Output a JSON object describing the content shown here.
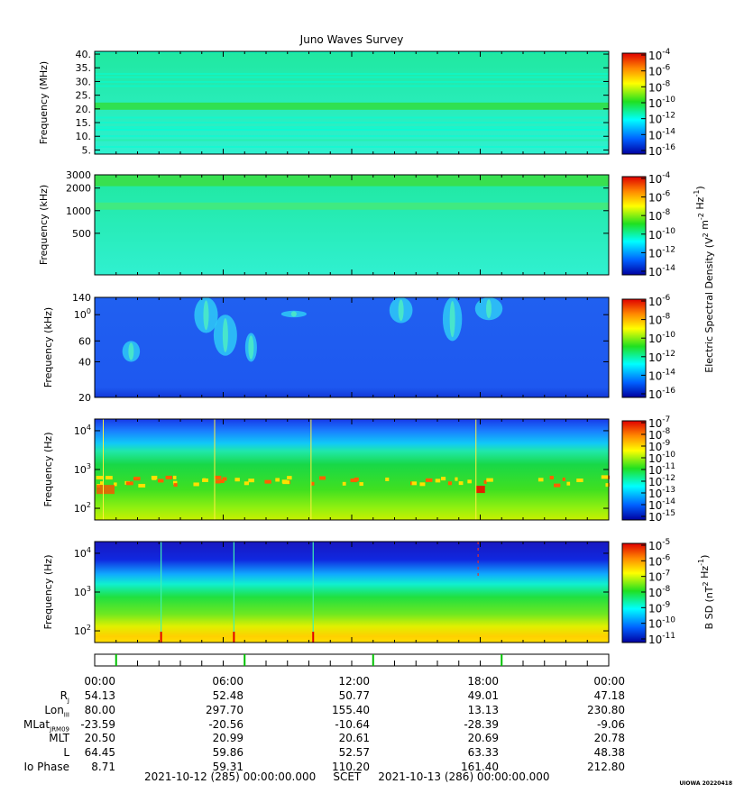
{
  "chart_data": {
    "title": "Juno Waves Survey",
    "panels": [
      {
        "type": "heatmap",
        "kind": "hfr_high",
        "ylabel": "Frequency (MHz)",
        "yscale": "linear",
        "ylim": [
          3.5,
          41
        ],
        "yticks": [
          "40.",
          "35.",
          "30.",
          "25.",
          "20.",
          "15.",
          "10.",
          "5."
        ],
        "yvals": [
          40,
          35,
          30,
          25,
          20,
          15,
          10,
          5
        ],
        "cbar_labels": [
          "10-4",
          "10-6",
          "10-8",
          "10-10",
          "10-12",
          "10-14",
          "10-16"
        ]
      },
      {
        "type": "heatmap",
        "kind": "hfr_low",
        "ylabel": "Frequency (kHz)",
        "yscale": "log",
        "ylim": [
          140,
          3000
        ],
        "yticks": [
          "3000",
          "2000",
          "1000",
          "500"
        ],
        "yvals": [
          3000,
          2000,
          1000,
          500
        ],
        "cbar_labels": [
          "10-4",
          "10-6",
          "10-8",
          "10-10",
          "10-12",
          "10-14"
        ]
      },
      {
        "type": "heatmap",
        "kind": "lfr",
        "ylabel": "Frequency (kHz)",
        "yscale": "log",
        "ylim": [
          20,
          140
        ],
        "yticks": [
          "140",
          "100",
          "60",
          "40",
          "20"
        ],
        "yvals": [
          140,
          100,
          60,
          40,
          20
        ],
        "cbar_labels": [
          "10-6",
          "10-8",
          "10-10",
          "10-12",
          "10-14",
          "10-16"
        ]
      },
      {
        "type": "heatmap",
        "kind": "electric_lowband",
        "ylabel": "Frequency (Hz)",
        "yscale": "log",
        "ylim": [
          50,
          20000
        ],
        "yticks": [
          "104",
          "103",
          "102"
        ],
        "yvals": [
          10000,
          1000,
          100
        ],
        "cbar_labels": [
          "10-7",
          "10-8",
          "10-9",
          "10-10",
          "10-11",
          "10-12",
          "10-13",
          "10-14",
          "10-15"
        ]
      },
      {
        "type": "heatmap",
        "kind": "magnetic",
        "ylabel": "Frequency (Hz)",
        "yscale": "log",
        "ylim": [
          50,
          20000
        ],
        "yticks": [
          "104",
          "103",
          "102"
        ],
        "yvals": [
          10000,
          1000,
          100
        ],
        "cbar_labels": [
          "10-5",
          "10-6",
          "10-7",
          "10-8",
          "10-9",
          "10-10",
          "10-11"
        ]
      }
    ],
    "shared_cbar_label": "Electric Spectral Density (V2 m-2 Hz-1)",
    "mag_cbar_label": "B SD (nT2 Hz-1)",
    "x_ticks": [
      "00:00",
      "06:00",
      "12:00",
      "18:00",
      "00:00"
    ],
    "xlim_hours": [
      0,
      24
    ]
  },
  "ephemeris": {
    "rows": [
      {
        "label": "R",
        "sub": "J",
        "values": [
          "54.13",
          "52.48",
          "50.77",
          "49.01",
          "47.18"
        ]
      },
      {
        "label": "Lon",
        "sub": "III",
        "values": [
          "80.00",
          "297.70",
          "155.40",
          "13.13",
          "230.80"
        ]
      },
      {
        "label": "MLat",
        "sub": "JRM09",
        "values": [
          "-23.59",
          "-20.56",
          "-10.64",
          "-28.39",
          "-9.06"
        ]
      },
      {
        "label": "MLT",
        "sub": "",
        "values": [
          "20.50",
          "20.99",
          "20.61",
          "20.69",
          "20.78"
        ]
      },
      {
        "label": "L",
        "sub": "",
        "values": [
          "64.45",
          "59.86",
          "52.57",
          "63.33",
          "48.38"
        ]
      },
      {
        "label": "Io Phase",
        "sub": "",
        "values": [
          "8.71",
          "59.31",
          "110.20",
          "161.40",
          "212.80"
        ]
      }
    ]
  },
  "footer": "2021-10-12 (285) 00:00:00.000     SCET     2021-10-13 (286) 00:00:00.000",
  "tag": "UIOWA 20220418",
  "colors": {
    "blue": "#1818c8",
    "cyan": "#00ffff",
    "green": "#20e020",
    "yellow": "#ffff00",
    "red": "#ff0000"
  }
}
